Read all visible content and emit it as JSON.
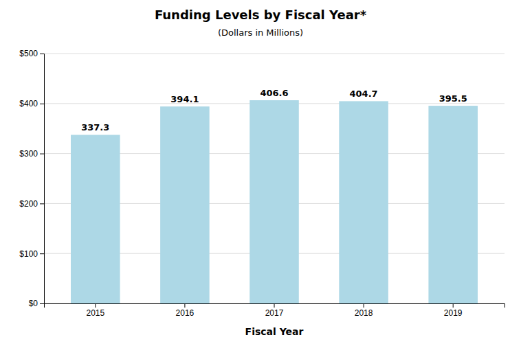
{
  "chart_data": {
    "type": "bar",
    "title": "Funding Levels by Fiscal Year*",
    "subtitle": "(Dollars in Millions)",
    "xlabel": "Fiscal Year",
    "categories": [
      "2015",
      "2016",
      "2017",
      "2018",
      "2019"
    ],
    "values": [
      337.3,
      394.1,
      406.6,
      404.7,
      395.5
    ],
    "color": "#add8e6",
    "ylim": [
      0,
      500
    ],
    "yticks": [
      {
        "value": 0,
        "label": "$0"
      },
      {
        "value": 100,
        "label": "$100"
      },
      {
        "value": 200,
        "label": "$200"
      },
      {
        "value": 300,
        "label": "$300"
      },
      {
        "value": 400,
        "label": "$400"
      },
      {
        "value": 500,
        "label": "$500"
      }
    ],
    "grid": true,
    "data_labels": true
  }
}
